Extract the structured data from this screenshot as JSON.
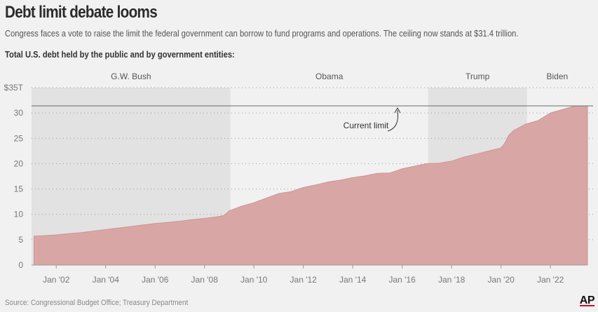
{
  "title": "Debt limit debate looms",
  "subtitle": "Congress faces a vote to raise the limit the federal government can borrow to fund programs and operations. The ceiling now stands at $31.4 trillion.",
  "chart_label": "Total U.S. debt held by the public and by government entities:",
  "source": "Source: Congressional Budget Office; Treasury Department",
  "logo": "AP",
  "colors": {
    "area_fill": "#d9a6a6",
    "area_line": "#cf9494",
    "shade": "#e2e2e2",
    "background": "#f1f1f1",
    "limit_line": "#6b6b6b"
  },
  "chart_data": {
    "type": "area",
    "title": "Total U.S. debt held by the public and by government entities:",
    "x_unit": "year",
    "y_unit": "trillions of dollars",
    "xlim": [
      2001.0,
      2023.5
    ],
    "ylim": [
      0,
      35
    ],
    "y_ticks": [
      {
        "value": 0,
        "label": "0"
      },
      {
        "value": 5,
        "label": "5"
      },
      {
        "value": 10,
        "label": "10"
      },
      {
        "value": 15,
        "label": "15"
      },
      {
        "value": 20,
        "label": "20"
      },
      {
        "value": 25,
        "label": "25"
      },
      {
        "value": 30,
        "label": "30"
      },
      {
        "value": 35,
        "label": "$35T"
      }
    ],
    "x_ticks": [
      {
        "value": 2002,
        "label": "Jan '02"
      },
      {
        "value": 2004,
        "label": "Jan '04"
      },
      {
        "value": 2006,
        "label": "Jan '06"
      },
      {
        "value": 2008,
        "label": "Jan '08"
      },
      {
        "value": 2010,
        "label": "Jan '10"
      },
      {
        "value": 2012,
        "label": "Jan '12"
      },
      {
        "value": 2014,
        "label": "Jan '14"
      },
      {
        "value": 2016,
        "label": "Jan '16"
      },
      {
        "value": 2018,
        "label": "Jan '18"
      },
      {
        "value": 2020,
        "label": "Jan '20"
      },
      {
        "value": 2022,
        "label": "Jan '22"
      }
    ],
    "x": [
      2001.1,
      2001.5,
      2002.0,
      2002.5,
      2003.0,
      2003.5,
      2004.0,
      2004.5,
      2005.0,
      2005.5,
      2006.0,
      2006.5,
      2007.0,
      2007.5,
      2008.0,
      2008.5,
      2008.8,
      2009.0,
      2009.5,
      2010.0,
      2010.5,
      2011.0,
      2011.5,
      2012.0,
      2012.5,
      2013.0,
      2013.5,
      2014.0,
      2014.5,
      2015.0,
      2015.5,
      2016.0,
      2016.5,
      2017.0,
      2017.5,
      2018.0,
      2018.5,
      2019.0,
      2019.5,
      2020.0,
      2020.15,
      2020.3,
      2020.5,
      2021.0,
      2021.5,
      2022.0,
      2022.5,
      2023.0
    ],
    "values": [
      5.7,
      5.8,
      5.95,
      6.2,
      6.4,
      6.7,
      7.0,
      7.3,
      7.6,
      7.9,
      8.2,
      8.4,
      8.65,
      8.95,
      9.2,
      9.5,
      9.8,
      10.7,
      11.6,
      12.3,
      13.2,
      14.1,
      14.5,
      15.3,
      15.8,
      16.4,
      16.75,
      17.25,
      17.6,
      18.1,
      18.15,
      19.0,
      19.5,
      20.0,
      20.1,
      20.5,
      21.3,
      21.9,
      22.5,
      23.1,
      24.0,
      25.5,
      26.5,
      27.8,
      28.5,
      30.0,
      30.7,
      31.4
    ],
    "series": [
      {
        "name": "Total U.S. debt",
        "x_ref": "x",
        "values_ref": "values"
      }
    ],
    "reference_line": {
      "value": 31.4,
      "label": "Current limit"
    },
    "shaded_periods": [
      {
        "name": "G.W. Bush",
        "start": 2001.0,
        "end": 2009.05,
        "shaded": true
      },
      {
        "name": "Obama",
        "start": 2009.05,
        "end": 2017.05,
        "shaded": false
      },
      {
        "name": "Trump",
        "start": 2017.05,
        "end": 2021.05,
        "shaded": true
      },
      {
        "name": "Biden",
        "start": 2021.05,
        "end": 2023.5,
        "shaded": false
      }
    ],
    "grid": "dotted horizontal",
    "legend": "none"
  }
}
